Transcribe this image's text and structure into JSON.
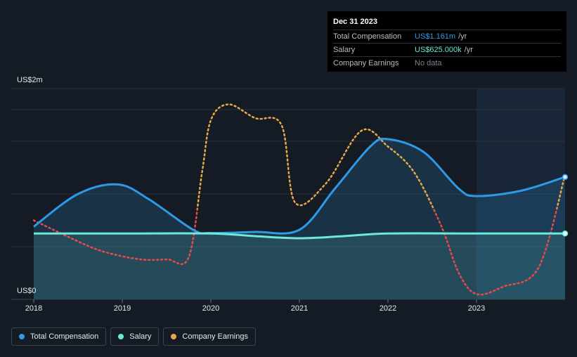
{
  "tooltip": {
    "date": "Dec 31 2023",
    "rows": [
      {
        "label": "Total Compensation",
        "value": "US$1.161m",
        "unit": "/yr"
      },
      {
        "label": "Salary",
        "value": "US$625.000k",
        "unit": "/yr"
      },
      {
        "label": "Company Earnings",
        "value": "No data",
        "unit": ""
      }
    ]
  },
  "legend": [
    {
      "label": "Total Compensation",
      "color": "#2e9ae6"
    },
    {
      "label": "Salary",
      "color": "#6ee8d8"
    },
    {
      "label": "Company Earnings",
      "color": "#e8a84a"
    }
  ],
  "colors": {
    "total": "#2e9ae6",
    "salary": "#6ee8d8",
    "earnings_pos": "#e8a84a",
    "earnings_neg": "#e84a4a",
    "forecast_shade": "#1a2f45"
  },
  "chart_data": {
    "type": "line",
    "title": "",
    "ylabel_top": "US$2m",
    "ylabel_bottom": "US$0",
    "ylim": [
      0,
      2.0
    ],
    "xlim": [
      2018.0,
      2024.0
    ],
    "x_ticks": [
      {
        "value": 2018,
        "label": "2018"
      },
      {
        "value": 2019,
        "label": "2019"
      },
      {
        "value": 2020,
        "label": "2020"
      },
      {
        "value": 2021,
        "label": "2021"
      },
      {
        "value": 2022,
        "label": "2022"
      },
      {
        "value": 2023,
        "label": "2023"
      }
    ],
    "gridlines": [
      0.5,
      1.0,
      1.5,
      1.8
    ],
    "highlight_start": 2023.0,
    "series": [
      {
        "name": "Total Compensation",
        "x": [
          2018.0,
          2018.5,
          2018.95,
          2019.3,
          2019.8,
          2020.0,
          2020.5,
          2021.0,
          2021.4,
          2021.8,
          2022.0,
          2022.4,
          2022.8,
          2023.0,
          2023.5,
          2024.0
        ],
        "values": [
          0.69,
          1.0,
          1.09,
          0.95,
          0.66,
          0.63,
          0.64,
          0.66,
          1.05,
          1.45,
          1.52,
          1.4,
          1.05,
          0.98,
          1.03,
          1.161
        ]
      },
      {
        "name": "Salary",
        "x": [
          2018.0,
          2019.0,
          2020.0,
          2020.5,
          2021.0,
          2021.5,
          2022.0,
          2023.0,
          2024.0
        ],
        "values": [
          0.625,
          0.625,
          0.625,
          0.6,
          0.58,
          0.6,
          0.625,
          0.625,
          0.625
        ]
      },
      {
        "name": "Company Earnings",
        "x": [
          2018.0,
          2018.5,
          2018.8,
          2019.2,
          2019.5,
          2019.75,
          2019.9,
          2020.0,
          2020.2,
          2020.5,
          2020.8,
          2020.95,
          2021.3,
          2021.7,
          2022.0,
          2022.3,
          2022.6,
          2022.8,
          2023.0,
          2023.3,
          2023.7,
          2024.0
        ],
        "values": [
          0.75,
          0.55,
          0.45,
          0.38,
          0.38,
          0.4,
          1.2,
          1.7,
          1.85,
          1.72,
          1.65,
          0.92,
          1.1,
          1.6,
          1.45,
          1.2,
          0.7,
          0.25,
          0.05,
          0.12,
          0.3,
          1.18
        ]
      }
    ]
  }
}
